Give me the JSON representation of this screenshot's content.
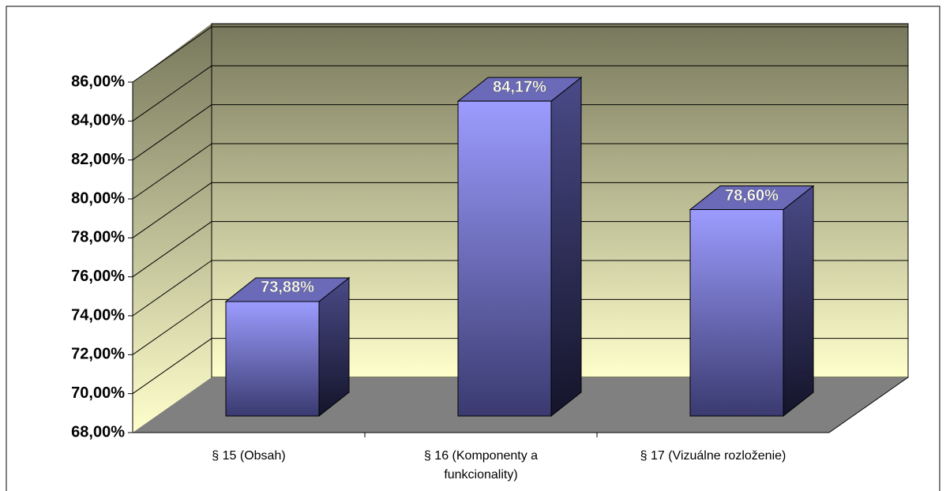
{
  "chart_data": {
    "type": "bar3d",
    "categories": [
      "§ 15 (Obsah)",
      "§ 16 (Komponenty a funkcionality)",
      "§ 17 (Vizuálne rozloženie)"
    ],
    "values": [
      73.88,
      84.17,
      78.6
    ],
    "value_labels": [
      "73,88%",
      "84,17%",
      "78,60%"
    ],
    "color": "#9999ff",
    "ylim": [
      68,
      86
    ],
    "yticks": [
      {
        "value": 68,
        "label": "68,00%"
      },
      {
        "value": 70,
        "label": "70,00%"
      },
      {
        "value": 72,
        "label": "72,00%"
      },
      {
        "value": 74,
        "label": "74,00%"
      },
      {
        "value": 76,
        "label": "76,00%"
      },
      {
        "value": 78,
        "label": "78,00%"
      },
      {
        "value": 80,
        "label": "80,00%"
      },
      {
        "value": 82,
        "label": "82,00%"
      },
      {
        "value": 84,
        "label": "84,00%"
      },
      {
        "value": 86,
        "label": "86,00%"
      }
    ],
    "grid": true
  }
}
